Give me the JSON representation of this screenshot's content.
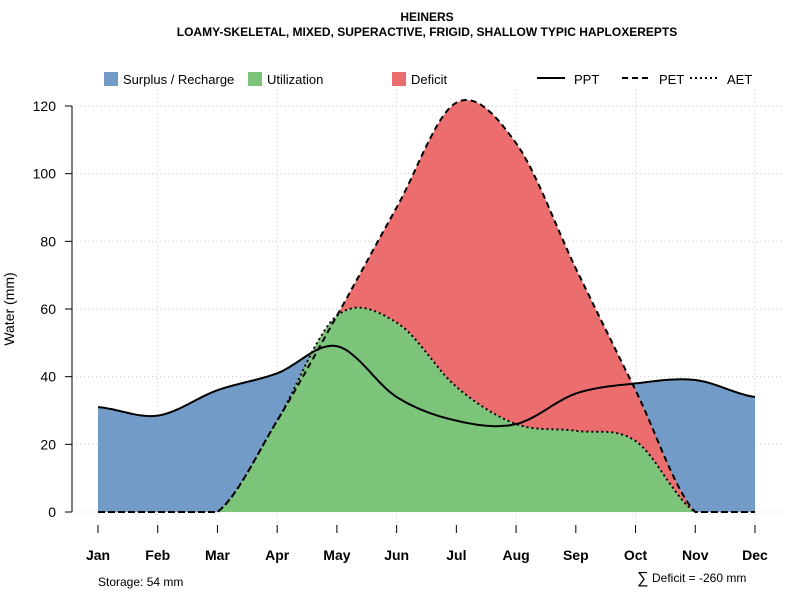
{
  "chart_data": {
    "type": "area",
    "title": "HEINERS",
    "subtitle": "LOAMY-SKELETAL, MIXED, SUPERACTIVE, FRIGID, SHALLOW TYPIC HAPLOXEREPTS",
    "xlabel": "",
    "ylabel": "Water (mm)",
    "ylim": [
      0,
      120
    ],
    "yticks": [
      "0",
      "20",
      "40",
      "60",
      "80",
      "100",
      "120"
    ],
    "categories": [
      "Jan",
      "Feb",
      "Mar",
      "Apr",
      "May",
      "Jun",
      "Jul",
      "Aug",
      "Sep",
      "Oct",
      "Nov",
      "Dec"
    ],
    "series": [
      {
        "name": "PPT",
        "style": "solid",
        "values": [
          31,
          28.5,
          36,
          41,
          49,
          34,
          27,
          26,
          35,
          38,
          39,
          34
        ]
      },
      {
        "name": "PET",
        "style": "dashed",
        "values": [
          0,
          0,
          0,
          27,
          58,
          90,
          121,
          109,
          72,
          36,
          0,
          0
        ]
      },
      {
        "name": "AET",
        "style": "dotted",
        "values": [
          0,
          0,
          0,
          27,
          58,
          56,
          37,
          26,
          24,
          21,
          0,
          0
        ]
      }
    ],
    "legend": [
      {
        "label": "Surplus / Recharge",
        "color": "#729BC8"
      },
      {
        "label": "Utilization",
        "color": "#7DC47B"
      },
      {
        "label": "Deficit",
        "color": "#EB6D6E"
      },
      {
        "label": "PPT"
      },
      {
        "label": "PET"
      },
      {
        "label": "AET"
      }
    ],
    "legend_position": "top",
    "grid": true,
    "storage_note": "Storage: 54 mm",
    "deficit_symbol": "∑",
    "deficit_note": "Deficit = -260 mm"
  }
}
